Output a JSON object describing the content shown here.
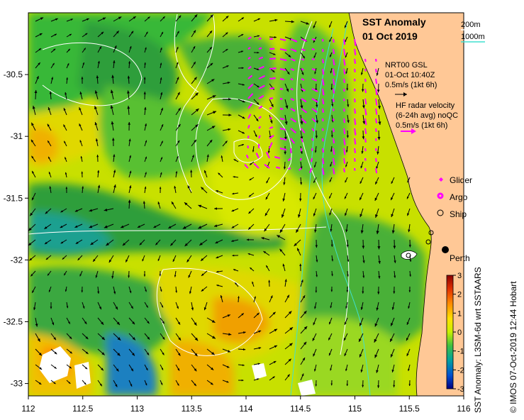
{
  "title": {
    "line1": "SST Anomaly",
    "line2": "01 Oct 2019"
  },
  "isobath_legend": {
    "shallow": "200m",
    "deep": "1000m"
  },
  "nrt": {
    "line1": "NRT00 GSL",
    "line2": "01-Oct 10:40Z",
    "scale": "0.5m/s (1kt 6h)"
  },
  "hf_radar": {
    "line1": "HF radar velocity",
    "line2": "(6-24h avg) noQC",
    "scale": "0.5m/s (1kt 6h)"
  },
  "platform_legend": [
    {
      "label": "Glider",
      "symbol": "diamond",
      "color": "#ff00ff"
    },
    {
      "label": "Argo",
      "symbol": "circle-filled",
      "color": "#ff00ff"
    },
    {
      "label": "Ship",
      "symbol": "circle-open",
      "color": "#000000"
    }
  ],
  "place_label": "Perth",
  "colorbar": {
    "title": "SST Anomaly: L3SM-6d wrt SSTAARS",
    "ticks": [
      "3",
      "2",
      "1",
      "0",
      "-1",
      "-2",
      "-3"
    ],
    "range": [
      -3,
      3
    ]
  },
  "credit": "© IMOS 07-Oct-2019 12:44 Hobart",
  "axes": {
    "x_ticks": [
      "112",
      "112.5",
      "113",
      "113.5",
      "114",
      "114.5",
      "115",
      "115.5",
      "116"
    ],
    "y_ticks": [
      "-30.5",
      "-31",
      "-31.5",
      "-32",
      "-32.5",
      "-33"
    ],
    "x_range": [
      112,
      116
    ],
    "y_range": [
      -33.1,
      -30.0
    ]
  },
  "colors": {
    "land": "#ffc896",
    "glider": "#ff00ff",
    "hf_arrow": "#ff00ff",
    "isobath_200": "#ffffff",
    "isobath_1000": "#40e0d0"
  }
}
